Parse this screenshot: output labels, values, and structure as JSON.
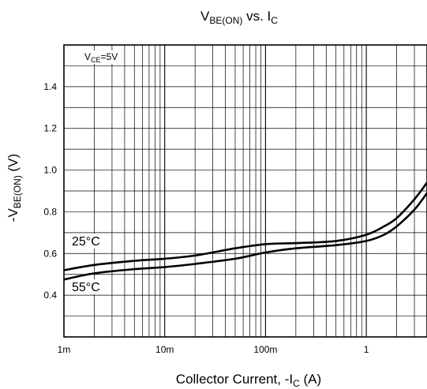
{
  "chart_data": {
    "type": "line",
    "title_main": "V",
    "title_sub1": "BE(ON)",
    "title_mid": " vs. I",
    "title_sub2": "C",
    "xlabel_main": "Collector Current, -I",
    "xlabel_sub": "C",
    "xlabel_unit": " (A)",
    "ylabel_main": "-V",
    "ylabel_sub": "BE(ON)",
    "ylabel_unit": "  (V)",
    "x_scale": "log",
    "xlim": [
      0.001,
      4
    ],
    "ylim": [
      0.2,
      1.6
    ],
    "x_ticks": [
      {
        "value": 0.001,
        "label": "1m"
      },
      {
        "value": 0.01,
        "label": "10m"
      },
      {
        "value": 0.1,
        "label": "100m"
      },
      {
        "value": 1,
        "label": "1"
      }
    ],
    "y_ticks": [
      {
        "value": 0.4,
        "label": "0.4"
      },
      {
        "value": 0.6,
        "label": "0.6"
      },
      {
        "value": 0.8,
        "label": "0.8"
      },
      {
        "value": 1.0,
        "label": "1.0"
      },
      {
        "value": 1.2,
        "label": "1.2"
      },
      {
        "value": 1.4,
        "label": "1.4"
      }
    ],
    "grid": true,
    "annotation_main": "V",
    "annotation_sub": "CE",
    "annotation_tail": "=5V",
    "series": [
      {
        "name": "25°C",
        "x": [
          0.001,
          0.002,
          0.005,
          0.01,
          0.02,
          0.05,
          0.1,
          0.2,
          0.5,
          1,
          1.5,
          2,
          3,
          4
        ],
        "y": [
          0.52,
          0.545,
          0.565,
          0.575,
          0.59,
          0.625,
          0.645,
          0.65,
          0.66,
          0.69,
          0.73,
          0.77,
          0.86,
          0.94
        ]
      },
      {
        "name": "55°C",
        "x": [
          0.001,
          0.002,
          0.005,
          0.01,
          0.02,
          0.05,
          0.1,
          0.2,
          0.5,
          1,
          1.5,
          2,
          3,
          4
        ],
        "y": [
          0.475,
          0.505,
          0.525,
          0.535,
          0.55,
          0.575,
          0.605,
          0.625,
          0.64,
          0.66,
          0.69,
          0.73,
          0.81,
          0.89
        ]
      }
    ]
  }
}
